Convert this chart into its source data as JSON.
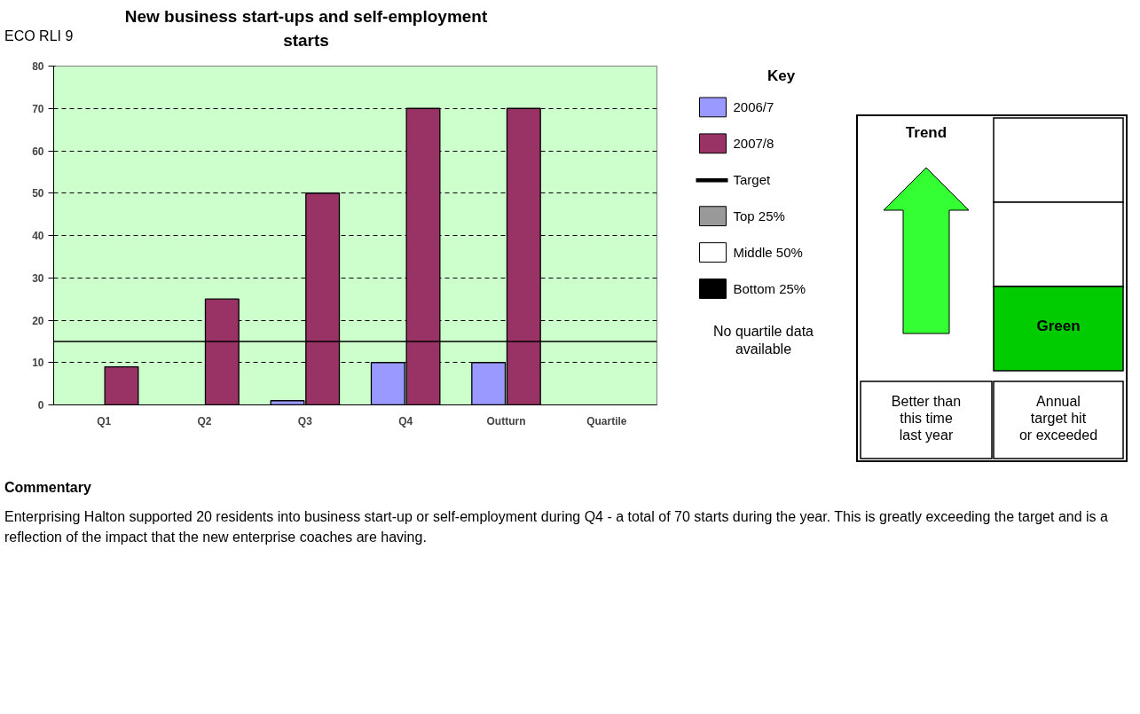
{
  "chart_data": [
    {
      "type": "bar",
      "title": "New business start-ups and self-employment starts",
      "legend_title": "Key",
      "categories": [
        "Q1",
        "Q2",
        "Q3",
        "Q4",
        "Outturn",
        "Quartile"
      ],
      "series": [
        {
          "name": "2006/7",
          "color": "#9999ff",
          "values": [
            null,
            null,
            1,
            10,
            10,
            null
          ]
        },
        {
          "name": "2007/8",
          "color": "#993366",
          "values": [
            9,
            25,
            50,
            70,
            70,
            null
          ]
        },
        {
          "name": "Top 25%",
          "color": "#999999",
          "values": [
            null,
            null,
            null,
            null,
            null,
            null
          ]
        },
        {
          "name": "Middle 50%",
          "color": "#ffffff",
          "values": [
            null,
            null,
            null,
            null,
            null,
            null
          ]
        },
        {
          "name": "Bottom 25%",
          "color": "#000000",
          "values": [
            null,
            null,
            null,
            null,
            null,
            null
          ]
        }
      ],
      "ref_lines": [
        {
          "axis": "y",
          "value": 15,
          "label": "Target",
          "color": "#000000"
        }
      ],
      "ylim": [
        0,
        80
      ],
      "yticks": [
        0,
        10,
        20,
        30,
        40,
        50,
        60,
        70,
        80
      ],
      "grid": "y",
      "legend": "right",
      "annotations": [
        "ECO RLI 9",
        "No quartile data available",
        "Commentary",
        "Enterprising Halton supported 20 residents into business start-up or self-employment during Q4 - a total of 70 starts during the year. This is greatly exceeding the target and is a reflection of the impact that the new enterprise coaches are having."
      ]
    },
    {
      "type": "other",
      "annotations": [
        "Trend",
        "Green",
        "Better than this time last year",
        "Annual target hit or exceeded"
      ]
    }
  ]
}
